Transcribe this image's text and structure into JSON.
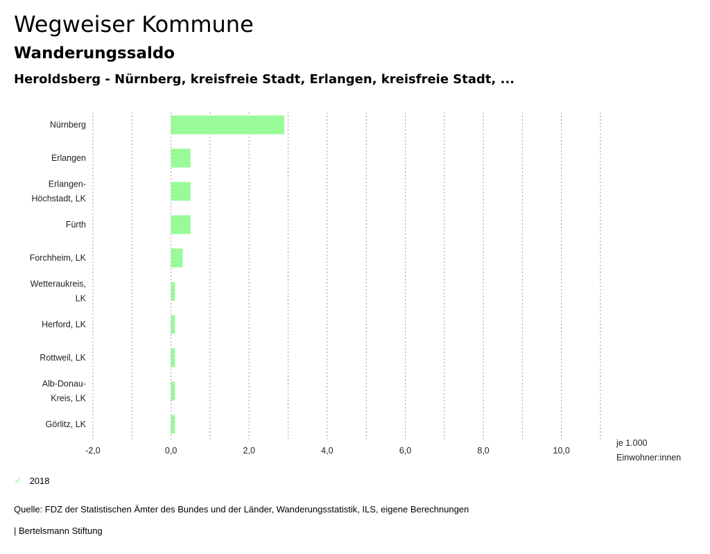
{
  "header": {
    "title": "Wegweiser Kommune",
    "subtitle": "Wanderungssaldo",
    "region": "Heroldsberg - Nürnberg, kreisfreie Stadt, Erlangen, kreisfreie Stadt, ..."
  },
  "chart_data": {
    "type": "bar",
    "orientation": "horizontal",
    "categories": [
      [
        "Nürnberg"
      ],
      [
        "Erlangen"
      ],
      [
        "Erlangen-",
        "Höchstadt, LK"
      ],
      [
        "Fürth"
      ],
      [
        "Forchheim, LK"
      ],
      [
        "Wetteraukreis,",
        "LK"
      ],
      [
        "Herford, LK"
      ],
      [
        "Rottweil, LK"
      ],
      [
        "Alb-Donau-",
        "Kreis, LK"
      ],
      [
        "Görlitz, LK"
      ]
    ],
    "series": [
      {
        "name": "2018",
        "color": "#98fa98",
        "values": [
          2.9,
          0.5,
          0.5,
          0.5,
          0.3,
          0.1,
          0.1,
          0.1,
          0.1,
          0.1
        ]
      }
    ],
    "xlim": [
      -2.0,
      11.0
    ],
    "ticks": [
      -2.0,
      -1.0,
      0.0,
      1.0,
      2.0,
      3.0,
      4.0,
      5.0,
      6.0,
      7.0,
      8.0,
      9.0,
      10.0,
      11.0
    ],
    "tick_labels": [
      "-2,0",
      "",
      "0,0",
      "",
      "2,0",
      "",
      "4,0",
      "",
      "6,0",
      "",
      "8,0",
      "",
      "10,0",
      ""
    ],
    "unit_label": [
      "je 1.000",
      "Einwohner:innen"
    ],
    "grid": true
  },
  "legend": {
    "label": "2018",
    "color": "#98fa98"
  },
  "footer": {
    "source": "Quelle: FDZ der Statistischen Ämter des Bundes und der Länder, Wanderungsstatistik, ILS, eigene Berechnungen",
    "credit": "| Bertelsmann Stiftung"
  }
}
